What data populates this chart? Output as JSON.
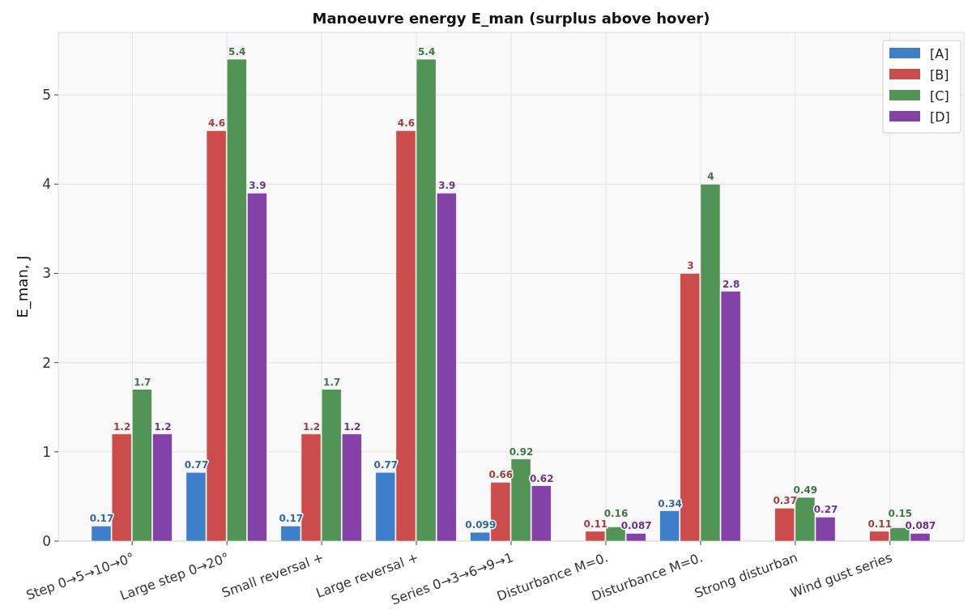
{
  "chart_data": {
    "type": "bar",
    "title": "Manoeuvre energy E_man (surplus above hover)",
    "ylabel": "E_man, J",
    "categories": [
      "Step 0→5→10→0°",
      "Large step 0→20°",
      "Small reversal +",
      "Large reversal +",
      "Series 0→3→6→9→1",
      "Disturbance M=0.",
      "Disturbance M=0.",
      "Strong disturban",
      "Wind gust series"
    ],
    "series": [
      {
        "name": "[A]",
        "color": "#3d7fcb",
        "values": [
          0.17,
          0.77,
          0.17,
          0.77,
          0.099,
          null,
          0.34,
          null,
          null
        ]
      },
      {
        "name": "[B]",
        "color": "#cc4c4c",
        "values": [
          1.2,
          4.6,
          1.2,
          4.6,
          0.66,
          0.11,
          3,
          0.37,
          0.11
        ]
      },
      {
        "name": "[C]",
        "color": "#529455",
        "values": [
          1.7,
          5.4,
          1.7,
          5.4,
          0.92,
          0.16,
          4,
          0.49,
          0.15
        ]
      },
      {
        "name": "[D]",
        "color": "#8442a8",
        "values": [
          1.2,
          3.9,
          1.2,
          3.9,
          0.62,
          0.087,
          2.8,
          0.27,
          0.087
        ]
      }
    ],
    "ylim": [
      0,
      5.7
    ],
    "yticks": [
      0,
      1,
      2,
      3,
      4,
      5
    ],
    "grid": true,
    "legend": "top right",
    "data_labels": true
  }
}
